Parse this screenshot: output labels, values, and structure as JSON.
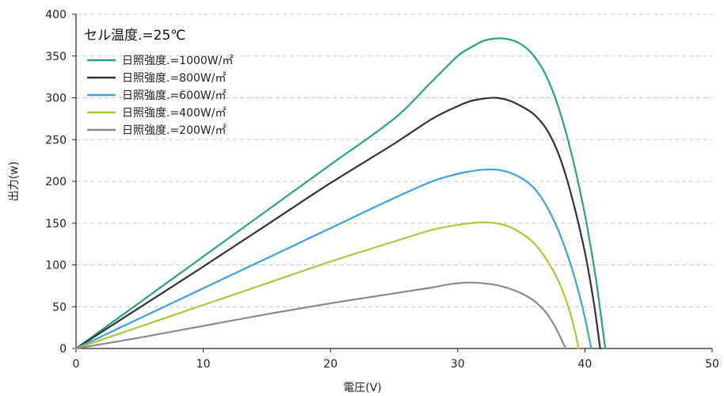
{
  "chart_data": {
    "type": "line",
    "title": "",
    "annotation": "セル温度.=25℃",
    "xlabel": "電圧(V)",
    "ylabel": "出力(w)",
    "xlim": [
      0,
      50
    ],
    "ylim": [
      0,
      400
    ],
    "xticks": [
      0,
      10,
      20,
      30,
      40,
      50
    ],
    "yticks": [
      0,
      50,
      100,
      150,
      200,
      250,
      300,
      350,
      400
    ],
    "grid": "horizontal-dashed",
    "legend_position": "top-left",
    "series": [
      {
        "name": "日照強度.=1000W/㎡",
        "color": "#2aa37a",
        "points": [
          [
            0,
            0
          ],
          [
            5,
            55
          ],
          [
            10,
            110
          ],
          [
            15,
            165
          ],
          [
            20,
            220
          ],
          [
            25,
            275
          ],
          [
            28,
            320
          ],
          [
            30,
            350
          ],
          [
            31,
            360
          ],
          [
            32,
            368
          ],
          [
            33,
            371
          ],
          [
            34,
            370
          ],
          [
            35,
            364
          ],
          [
            36,
            350
          ],
          [
            37,
            325
          ],
          [
            38,
            285
          ],
          [
            39,
            230
          ],
          [
            40,
            160
          ],
          [
            40.8,
            90
          ],
          [
            41.3,
            35
          ],
          [
            41.6,
            0
          ]
        ]
      },
      {
        "name": "日照強度.=800W/㎡",
        "color": "#333333",
        "points": [
          [
            0,
            0
          ],
          [
            5,
            49
          ],
          [
            10,
            98
          ],
          [
            15,
            148
          ],
          [
            20,
            198
          ],
          [
            25,
            245
          ],
          [
            28,
            275
          ],
          [
            30,
            290
          ],
          [
            31,
            296
          ],
          [
            32,
            299
          ],
          [
            33,
            300
          ],
          [
            34,
            297
          ],
          [
            35,
            290
          ],
          [
            36,
            280
          ],
          [
            37,
            262
          ],
          [
            38,
            230
          ],
          [
            39,
            180
          ],
          [
            40,
            115
          ],
          [
            40.7,
            55
          ],
          [
            41.2,
            0
          ]
        ]
      },
      {
        "name": "日照強度.=600W/㎡",
        "color": "#3aa2e0",
        "points": [
          [
            0,
            0
          ],
          [
            5,
            36
          ],
          [
            10,
            72
          ],
          [
            15,
            108
          ],
          [
            20,
            144
          ],
          [
            25,
            180
          ],
          [
            28,
            200
          ],
          [
            30,
            209
          ],
          [
            31,
            212
          ],
          [
            32,
            214
          ],
          [
            33,
            214
          ],
          [
            34,
            211
          ],
          [
            35,
            204
          ],
          [
            36,
            192
          ],
          [
            37,
            170
          ],
          [
            38,
            138
          ],
          [
            39,
            95
          ],
          [
            39.8,
            50
          ],
          [
            40.3,
            15
          ],
          [
            40.5,
            0
          ]
        ]
      },
      {
        "name": "日照強度.=400W/㎡",
        "color": "#a8c93a",
        "points": [
          [
            0,
            0
          ],
          [
            5,
            26
          ],
          [
            10,
            52
          ],
          [
            15,
            78
          ],
          [
            20,
            104
          ],
          [
            25,
            128
          ],
          [
            28,
            142
          ],
          [
            30,
            148
          ],
          [
            31,
            150
          ],
          [
            32,
            151
          ],
          [
            33,
            150
          ],
          [
            34,
            146
          ],
          [
            35,
            138
          ],
          [
            36,
            126
          ],
          [
            37,
            106
          ],
          [
            38,
            78
          ],
          [
            38.8,
            45
          ],
          [
            39.3,
            15
          ],
          [
            39.5,
            0
          ]
        ]
      },
      {
        "name": "日照強度.=200W/㎡",
        "color": "#8a8a8a",
        "points": [
          [
            0,
            0
          ],
          [
            5,
            13
          ],
          [
            10,
            27
          ],
          [
            15,
            41
          ],
          [
            20,
            54
          ],
          [
            25,
            66
          ],
          [
            28,
            73
          ],
          [
            29,
            76
          ],
          [
            30,
            78
          ],
          [
            31,
            79
          ],
          [
            32,
            78
          ],
          [
            33,
            76
          ],
          [
            34,
            72
          ],
          [
            35,
            66
          ],
          [
            36,
            57
          ],
          [
            37,
            42
          ],
          [
            37.8,
            22
          ],
          [
            38.3,
            6
          ],
          [
            38.5,
            0
          ]
        ]
      }
    ]
  }
}
